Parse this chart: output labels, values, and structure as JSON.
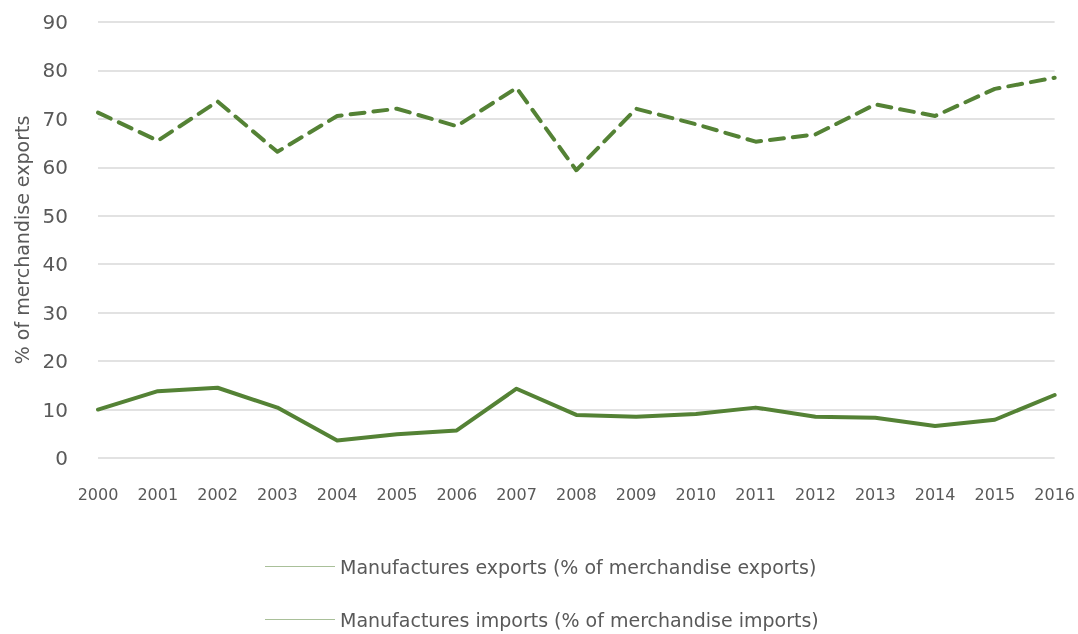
{
  "chart_data": {
    "type": "line",
    "ylabel": "% of merchandise exports",
    "categories": [
      "2000",
      "2001",
      "2002",
      "2003",
      "2004",
      "2005",
      "2006",
      "2007",
      "2008",
      "2009",
      "2010",
      "2011",
      "2012",
      "2013",
      "2014",
      "2015",
      "2016"
    ],
    "series": [
      {
        "name": "Manufactures exports (% of merchandise exports)",
        "color": "#548235",
        "line_style": "solid",
        "values": [
          10,
          13.8,
          14.5,
          10.4,
          3.6,
          4.9,
          5.7,
          14.3,
          8.9,
          8.5,
          9.1,
          10.4,
          8.5,
          8.3,
          6.6,
          7.9,
          13
        ]
      },
      {
        "name": "Manufactures imports (% of merchandise imports)",
        "color": "#548235",
        "line_style": "dashed",
        "values": [
          71.3,
          65.5,
          73.6,
          63.2,
          70.6,
          72.1,
          68.5,
          76.4,
          59.4,
          72.1,
          68.9,
          65.3,
          66.8,
          73,
          70.6,
          76.2,
          78.5
        ]
      }
    ],
    "ylim": [
      0,
      90
    ],
    "yticks": [
      0,
      10,
      20,
      30,
      40,
      50,
      60,
      70,
      80,
      90
    ],
    "grid": "y",
    "legend": "bottom",
    "marker": "none"
  }
}
